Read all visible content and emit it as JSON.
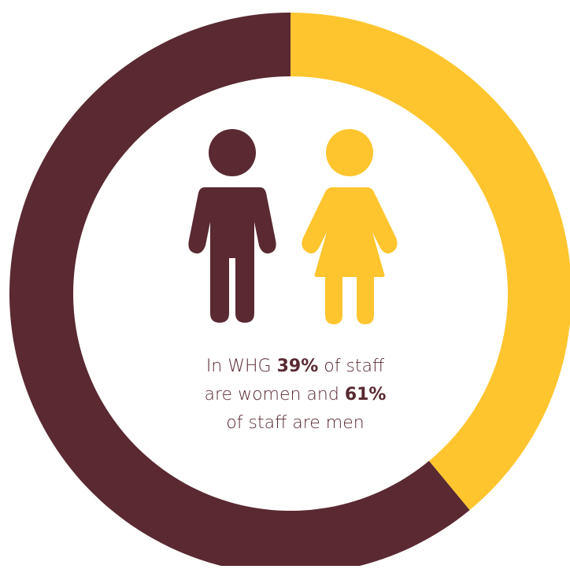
{
  "chart_data": {
    "type": "pie",
    "donut": true,
    "title": "",
    "slices": [
      {
        "name": "women",
        "value": 39,
        "color": "#fec52e"
      },
      {
        "name": "men",
        "value": 61,
        "color": "#5a2932"
      }
    ],
    "start_angle": "12 o'clock",
    "direction": "clockwise",
    "legend": "none"
  },
  "icons": [
    {
      "name": "man-icon",
      "color": "#5a2932"
    },
    {
      "name": "woman-icon",
      "color": "#fec52e"
    }
  ],
  "caption": {
    "line1_prefix": "In WHG ",
    "women_pct": "39%",
    "line1_suffix": " of staff",
    "line2_prefix": "are women and ",
    "men_pct": "61%",
    "line3": "of staff are men"
  }
}
